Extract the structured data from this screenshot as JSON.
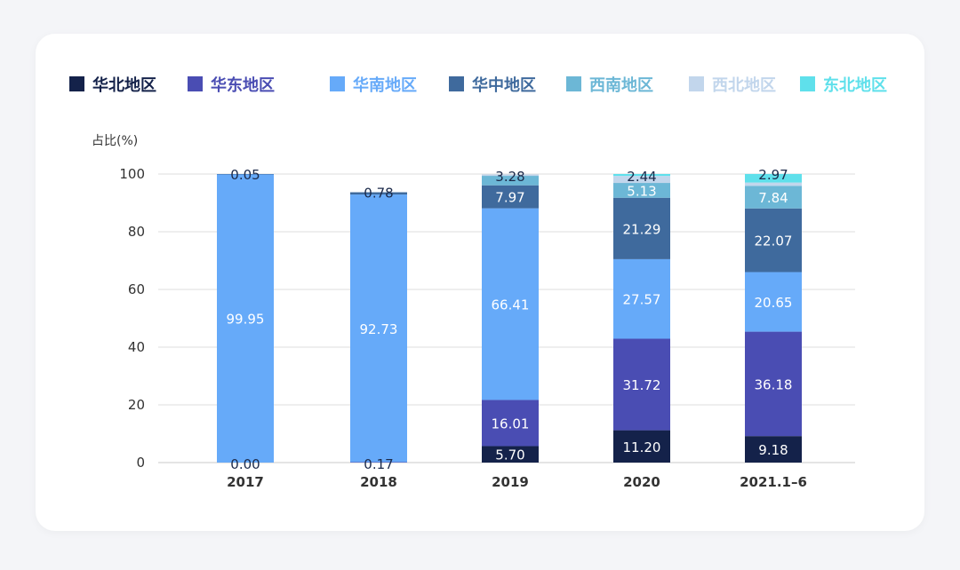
{
  "chart_data": {
    "type": "bar",
    "stacked": true,
    "ylabel": "占比(%)",
    "ylim": [
      0,
      100
    ],
    "yticks": [
      0,
      20,
      40,
      60,
      80,
      100
    ],
    "grid": true,
    "legend_position": "top",
    "categories": [
      "2017",
      "2018",
      "2019",
      "2020",
      "2021.1–6"
    ],
    "series": [
      {
        "name": "华北地区",
        "color": "#14224a",
        "label_color": "#ffffff",
        "values": [
          0.0,
          0.0,
          5.7,
          11.2,
          9.18
        ],
        "labels": [
          "",
          "",
          "5.70",
          "11.20",
          "9.18"
        ]
      },
      {
        "name": "华东地区",
        "color": "#4a4db3",
        "label_color": "#ffffff",
        "values": [
          0.0,
          0.17,
          16.01,
          31.72,
          36.18
        ],
        "labels": [
          "0.00",
          "0.17",
          "16.01",
          "31.72",
          "36.18"
        ]
      },
      {
        "name": "华南地区",
        "color": "#66aaf9",
        "label_color": "#ffffff",
        "values": [
          99.95,
          92.73,
          66.41,
          27.57,
          20.65
        ],
        "labels": [
          "99.95",
          "92.73",
          "66.41",
          "27.57",
          "20.65"
        ]
      },
      {
        "name": "华中地区",
        "color": "#3f6a9d",
        "label_color": "#ffffff",
        "values": [
          0.05,
          0.78,
          7.97,
          21.29,
          22.07
        ],
        "labels": [
          "0.05",
          "0.78",
          "7.97",
          "21.29",
          "22.07"
        ]
      },
      {
        "name": "西南地区",
        "color": "#6cb7d6",
        "label_color": "#ffffff",
        "values": [
          0.0,
          0.0,
          3.28,
          5.13,
          7.84
        ],
        "labels": [
          "",
          "",
          "3.28",
          "5.13",
          "7.84"
        ]
      },
      {
        "name": "西北地区",
        "color": "#c2d6ec",
        "label_color": "#ffffff",
        "values": [
          0.0,
          0.0,
          0.5,
          2.44,
          1.13
        ],
        "labels": [
          "",
          "",
          "",
          "2.44",
          ""
        ]
      },
      {
        "name": "东北地区",
        "color": "#5fe0eb",
        "label_color": "#ffffff",
        "values": [
          0.0,
          0.0,
          0.0,
          0.66,
          2.97
        ],
        "labels": [
          "",
          "",
          "",
          "",
          "2.97"
        ]
      }
    ],
    "legend_text_colors": [
      "#14224a",
      "#4a4db3",
      "#66aaf9",
      "#3f6a9d",
      "#6cb7d6",
      "#c2d6ec",
      "#5fe0eb"
    ]
  }
}
